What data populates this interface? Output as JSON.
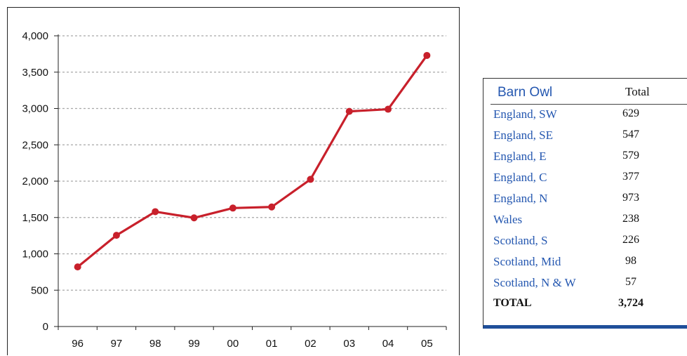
{
  "chart_data": {
    "type": "line",
    "categories": [
      "96",
      "97",
      "98",
      "99",
      "00",
      "01",
      "02",
      "03",
      "04",
      "05"
    ],
    "values": [
      820,
      1255,
      1580,
      1495,
      1630,
      1645,
      2025,
      2960,
      2990,
      3730
    ],
    "ylim": [
      0,
      4000
    ],
    "yticks": [
      0,
      500,
      1000,
      1500,
      2000,
      2500,
      3000,
      3500,
      4000
    ],
    "ytick_labels": [
      "0",
      "500",
      "1,000",
      "1,500",
      "2,000",
      "2,500",
      "3,000",
      "3,500",
      "4,000"
    ],
    "grid": "horizontal dashed",
    "line_color": "#c8202b",
    "title": "",
    "xlabel": "",
    "ylabel": ""
  },
  "table": {
    "header_species": "Barn Owl",
    "header_total": "Total",
    "rows": [
      {
        "region": "England, SW",
        "total": "629"
      },
      {
        "region": "England, SE",
        "total": "547"
      },
      {
        "region": "England, E",
        "total": "579"
      },
      {
        "region": "England, C",
        "total": "377"
      },
      {
        "region": "England, N",
        "total": "973"
      },
      {
        "region": "Wales",
        "total": "238"
      },
      {
        "region": "Scotland, S",
        "total": "226"
      },
      {
        "region": "Scotland, Mid",
        "total": "98"
      },
      {
        "region": "Scotland, N & W",
        "total": "57"
      }
    ],
    "total_row": {
      "label": "TOTAL",
      "value": "3,724"
    },
    "accent_color": "#1f4f9a",
    "label_color": "#2457b0"
  }
}
